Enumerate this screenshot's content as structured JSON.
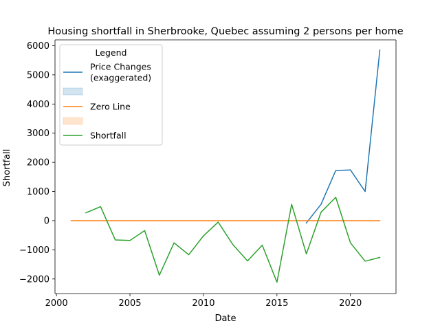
{
  "chart_data": {
    "type": "line",
    "title": "Housing shortfall in Sherbrooke, Quebec assuming 2 persons per home",
    "xlabel": "Date",
    "ylabel": "Shortfall",
    "xlim": [
      1999.9,
      2023.1
    ],
    "ylim": [
      -2500,
      6200
    ],
    "x_ticks": [
      2000,
      2005,
      2010,
      2015,
      2020
    ],
    "y_ticks": [
      -2000,
      -1000,
      0,
      1000,
      2000,
      3000,
      4000,
      5000,
      6000
    ],
    "grid": false,
    "legend": {
      "title": "Legend",
      "placement": "upper-left",
      "entries": [
        {
          "label": "Price Changes\n(exaggerated)",
          "kind": "line",
          "series": 0
        },
        {
          "label": "",
          "kind": "patch",
          "color": "#1f77b4"
        },
        {
          "label": "Zero Line",
          "kind": "line",
          "series": 1
        },
        {
          "label": "",
          "kind": "patch",
          "color": "#ff7f0e"
        },
        {
          "label": "Shortfall",
          "kind": "line",
          "series": 2
        }
      ]
    },
    "series": [
      {
        "name": "Price Changes\n(exaggerated)",
        "color": "#1f77b4",
        "x": [
          2017,
          2018,
          2019,
          2020,
          2021,
          2022
        ],
        "y": [
          -80,
          560,
          1720,
          1740,
          1000,
          5850
        ]
      },
      {
        "name": "Zero Line",
        "color": "#ff7f0e",
        "x": [
          2001,
          2022
        ],
        "y": [
          0,
          0
        ]
      },
      {
        "name": "Shortfall",
        "color": "#2ca02c",
        "x": [
          2002,
          2003,
          2004,
          2005,
          2006,
          2007,
          2008,
          2009,
          2010,
          2011,
          2012,
          2013,
          2014,
          2015,
          2016,
          2017,
          2018,
          2019,
          2020,
          2021,
          2022
        ],
        "y": [
          270,
          480,
          -660,
          -680,
          -340,
          -1870,
          -760,
          -1170,
          -520,
          -50,
          -820,
          -1380,
          -840,
          -2110,
          560,
          -1140,
          290,
          800,
          -760,
          -1390,
          -1260
        ]
      }
    ]
  }
}
